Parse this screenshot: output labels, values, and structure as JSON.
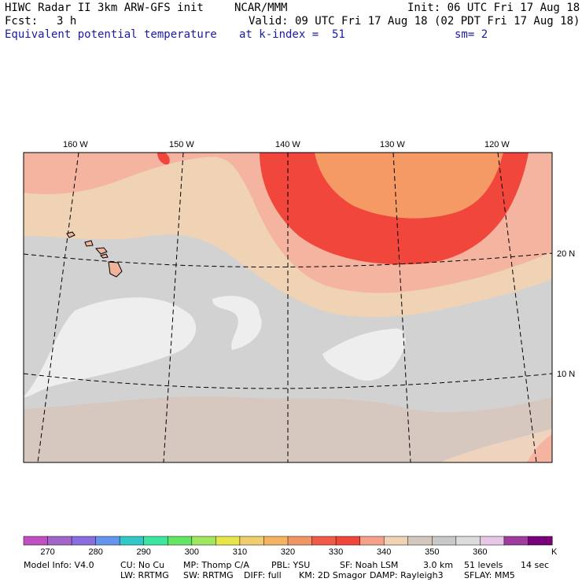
{
  "header": {
    "title": "HIWC Radar II 3km ARW-GFS init",
    "source": "NCAR/MMM",
    "init": "Init: 06 UTC Fri 17 Aug 18",
    "fcst_label": "Fcst:",
    "fcst_value": "3 h",
    "valid": "Valid: 09 UTC Fri 17 Aug 18 (02 PDT Fri 17 Aug 18)",
    "field": "Equivalent potential temperature",
    "level": "at k-index =  51",
    "smoothing": "sm= 2"
  },
  "map": {
    "lon_labels": [
      "160 W",
      "150 W",
      "140 W",
      "130 W",
      "120 W"
    ],
    "lat_labels": [
      "20 N",
      "10 N"
    ]
  },
  "colorbar": {
    "colors": [
      "#c04fc0",
      "#a266c8",
      "#8a6ee0",
      "#6495ed",
      "#32c8c8",
      "#3ce6a0",
      "#64e664",
      "#a0e660",
      "#e6e64b",
      "#f0cd6e",
      "#f5b464",
      "#f09664",
      "#f05a46",
      "#f0463c",
      "#f5a088",
      "#f0d2b4",
      "#d2c8be",
      "#c8c8c8",
      "#dcdcdc",
      "#e6c8e6",
      "#a03ca0",
      "#780078"
    ],
    "tick_labels": [
      "270",
      "280",
      "290",
      "300",
      "310",
      "320",
      "330",
      "340",
      "350",
      "360"
    ],
    "unit": "K"
  },
  "footer": {
    "line1": [
      "Model Info: V4.0",
      "CU: No Cu",
      "MP: Thomp C/A",
      "PBL: YSU",
      "SF: Noah LSM",
      "3.0 km",
      "51 levels",
      "14 sec"
    ],
    "line2": [
      "LW: RRTMG",
      "SW: RRTMG",
      "DIFF: full",
      "KM: 2D Smagor",
      "DAMP: Rayleigh3",
      "SFLAY: MM5"
    ]
  }
}
